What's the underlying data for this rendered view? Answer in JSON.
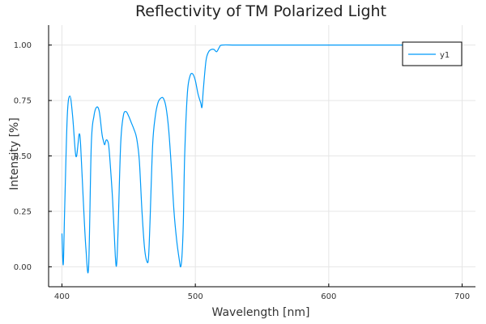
{
  "chart_data": {
    "type": "line",
    "title": "Reflectivity of TM Polarized Light",
    "xlabel": "Wavelength [nm]",
    "ylabel": "Intensity [%]",
    "xlim": [
      390,
      710
    ],
    "ylim": [
      -0.09,
      1.09
    ],
    "grid": true,
    "legend_position": "top-right",
    "x_ticks": [
      {
        "value": 400,
        "label": "400"
      },
      {
        "value": 500,
        "label": "500"
      },
      {
        "value": 600,
        "label": "600"
      },
      {
        "value": 700,
        "label": "700"
      }
    ],
    "y_ticks": [
      {
        "value": 0.0,
        "label": "0.00"
      },
      {
        "value": 0.25,
        "label": "0.25"
      },
      {
        "value": 0.5,
        "label": "0.50"
      },
      {
        "value": 0.75,
        "label": "0.75"
      },
      {
        "value": 1.0,
        "label": "1.00"
      }
    ],
    "series": [
      {
        "name": "y1",
        "color": "#009af9",
        "x": [
          400,
          401,
          402,
          404,
          406,
          408,
          410,
          411,
          412,
          413,
          414,
          416,
          418,
          420,
          422,
          424,
          426,
          428,
          430,
          431,
          432,
          433,
          434,
          435,
          436,
          438,
          440,
          441,
          442,
          444,
          446,
          448,
          450,
          452,
          454,
          456,
          458,
          460,
          462,
          464,
          465,
          466,
          468,
          470,
          472,
          474,
          476,
          478,
          480,
          482,
          484,
          486,
          488,
          489,
          490,
          491,
          492,
          494,
          496,
          498,
          500,
          502,
          504,
          505,
          506,
          508,
          510,
          512,
          514,
          516,
          518,
          520,
          530,
          550,
          600,
          650,
          700
        ],
        "values": [
          0.15,
          0.01,
          0.25,
          0.68,
          0.77,
          0.68,
          0.52,
          0.5,
          0.55,
          0.6,
          0.55,
          0.3,
          0.08,
          0.0,
          0.55,
          0.68,
          0.72,
          0.7,
          0.6,
          0.57,
          0.55,
          0.57,
          0.57,
          0.55,
          0.48,
          0.3,
          0.05,
          0.01,
          0.15,
          0.55,
          0.68,
          0.7,
          0.68,
          0.65,
          0.62,
          0.58,
          0.48,
          0.25,
          0.08,
          0.02,
          0.05,
          0.2,
          0.55,
          0.68,
          0.74,
          0.76,
          0.76,
          0.72,
          0.62,
          0.45,
          0.25,
          0.12,
          0.03,
          0.0,
          0.05,
          0.2,
          0.5,
          0.78,
          0.86,
          0.87,
          0.84,
          0.78,
          0.74,
          0.72,
          0.8,
          0.93,
          0.97,
          0.98,
          0.98,
          0.97,
          0.99,
          1.0,
          1.0,
          1.0,
          1.0,
          1.0,
          1.0
        ]
      }
    ]
  }
}
